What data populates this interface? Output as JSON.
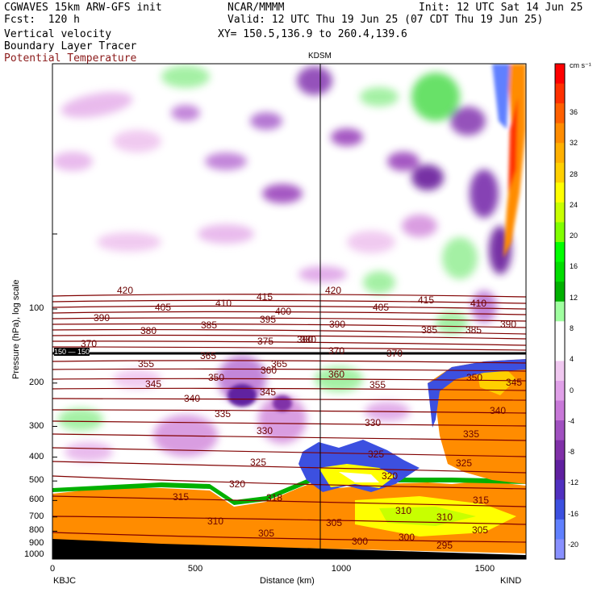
{
  "header": {
    "model": "CGWAVES 15km ARW-GFS init",
    "source": "NCAR/MMMM",
    "init": "Init: 12 UTC Sat 14 Jun 25",
    "fcst": "Fcst:  120 h",
    "valid": "Valid: 12 UTC Thu 19 Jun 25 (07 CDT Thu 19 Jun 25)",
    "field1": "Vertical velocity",
    "field2": "Boundary Layer Tracer",
    "field3": "Potential Temperature",
    "xy": "XY= 150.5,136.9 to 260.4,139.6",
    "field3_color": "#8b1a1a"
  },
  "chart_data": {
    "type": "heatmap",
    "title": "Vertical velocity",
    "xlabel": "Distance (km)",
    "ylabel": "Pressure (hPa), log scale",
    "xlim": [
      0,
      1650
    ],
    "x_ticks": [
      0,
      500,
      1000,
      1500
    ],
    "x_tick_labels": [
      "0",
      "500",
      "1000",
      "1500"
    ],
    "y_ticks": [
      100,
      200,
      300,
      400,
      500,
      600,
      700,
      800,
      900,
      1000
    ],
    "y_tick_labels": [
      "100",
      "200",
      "300",
      "400",
      "500",
      "600",
      "700",
      "800",
      "900",
      "1000"
    ],
    "left_station": "KBJC",
    "right_station": "KIND",
    "mid_station": "KDSM",
    "mid_station_km": 930,
    "tropopause_label_left": "150 — 150",
    "colorbar": {
      "unit": "cm s⁻¹",
      "tick_labels": [
        "36",
        "32",
        "28",
        "24",
        "20",
        "16",
        "12",
        "8",
        "4",
        "0",
        "-4",
        "-8",
        "-12",
        "-16",
        "-20"
      ],
      "colors": [
        "#ff0000",
        "#ff3000",
        "#ff6000",
        "#ff8c00",
        "#ffb000",
        "#ffd000",
        "#ffff00",
        "#c8ff00",
        "#80ff00",
        "#00ff00",
        "#00dd00",
        "#00b000",
        "#a0ffa0",
        "#ffffff",
        "#ffffff",
        "#f0c8f0",
        "#e0a0e8",
        "#c878d8",
        "#a050c0",
        "#8030a8",
        "#6020a0",
        "#5030c0",
        "#3c50e0",
        "#6080ff",
        "#8890ff"
      ]
    },
    "theta_labels": [
      "420",
      "405",
      "410",
      "415",
      "420",
      "405",
      "415",
      "410",
      "390",
      "400",
      "390",
      "385",
      "390",
      "395",
      "380",
      "385",
      "380",
      "385",
      "370",
      "375",
      "380",
      "370",
      "370",
      "365",
      "355",
      "360",
      "365",
      "360",
      "345",
      "350",
      "345",
      "355",
      "340",
      "350",
      "345",
      "335",
      "330",
      "340",
      "330",
      "335",
      "325",
      "325",
      "325",
      "320",
      "320",
      "315",
      "318",
      "315",
      "310",
      "310",
      "310",
      "305",
      "305",
      "305",
      "300",
      "300",
      "295"
    ]
  }
}
